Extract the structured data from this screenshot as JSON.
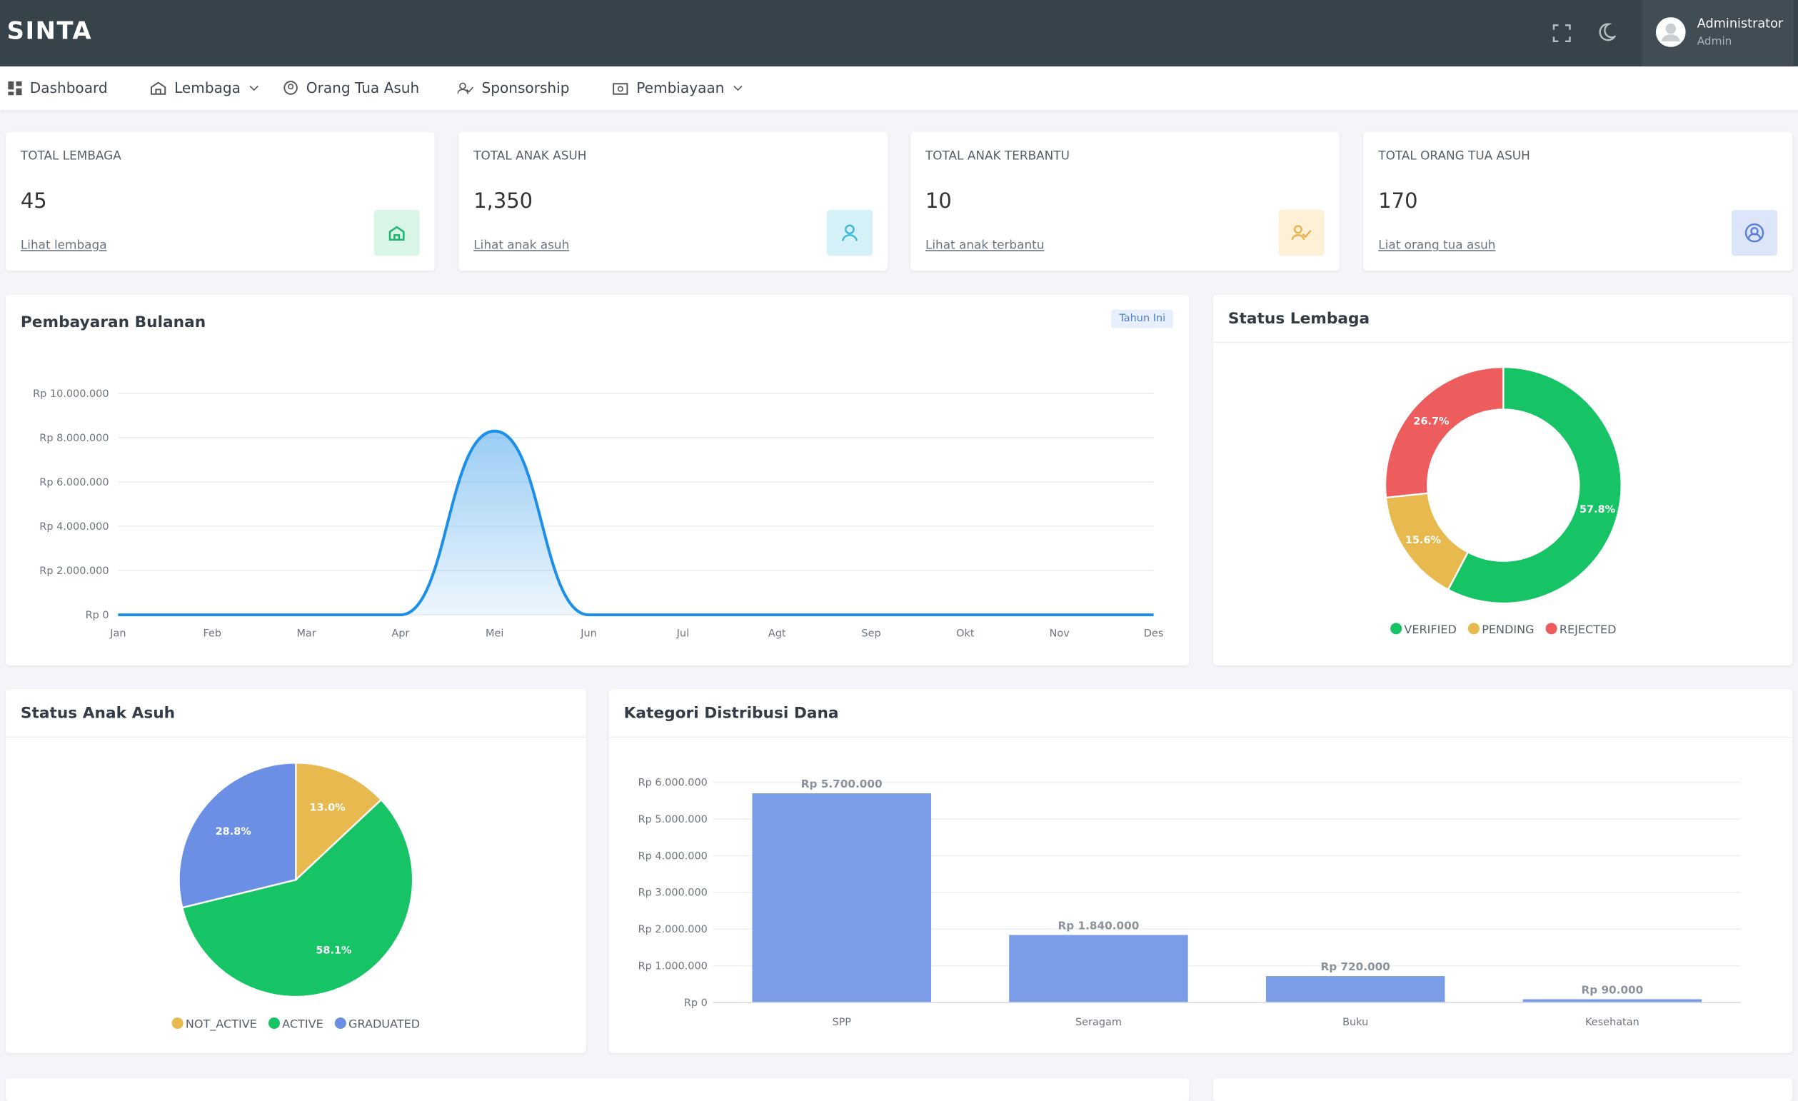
{
  "header": {
    "brand": "SINTA",
    "user_name": "Administrator",
    "user_role": "Admin"
  },
  "nav": [
    "Dashboard",
    "Lembaga",
    "Orang Tua Asuh",
    "Sponsorship",
    "Pembiayaan"
  ],
  "cards": [
    {
      "title": "TOTAL LEMBAGA",
      "value": "45",
      "link": "Lihat lembaga"
    },
    {
      "title": "TOTAL ANAK ASUH",
      "value": "1,350",
      "link": "Lihat anak asuh"
    },
    {
      "title": "TOTAL ANAK TERBANTU",
      "value": "10",
      "link": "Lihat anak terbantu"
    },
    {
      "title": "TOTAL ORANG TUA ASUH",
      "value": "170",
      "link": "Liat orang tua asuh"
    }
  ],
  "chart_data": [
    {
      "type": "line",
      "title": "Pembayaran Bulanan",
      "badge": "Tahun Ini",
      "categories": [
        "Jan",
        "Feb",
        "Mar",
        "Apr",
        "Mei",
        "Jun",
        "Jul",
        "Agt",
        "Sep",
        "Okt",
        "Nov",
        "Des"
      ],
      "values": [
        0,
        0,
        0,
        0,
        8300000,
        0,
        0,
        0,
        0,
        0,
        0,
        0
      ],
      "color": "#1e8fe8",
      "ylim": [
        0,
        10000000
      ],
      "yticks": [
        {
          "value": 0,
          "label": "Rp 0"
        },
        {
          "value": 2000000,
          "label": "Rp 2.000.000"
        },
        {
          "value": 4000000,
          "label": "Rp 4.000.000"
        },
        {
          "value": 6000000,
          "label": "Rp 6.000.000"
        },
        {
          "value": 8000000,
          "label": "Rp 8.000.000"
        },
        {
          "value": 10000000,
          "label": "Rp 10.000.000"
        }
      ],
      "grid": true
    },
    {
      "type": "donut",
      "title": "Status Lembaga",
      "categories": [
        "VERIFIED",
        "PENDING",
        "REJECTED"
      ],
      "values": [
        57.8,
        15.6,
        26.7
      ],
      "value_labels": [
        "57.8%",
        "15.6%",
        "26.7%"
      ],
      "colors": [
        "#16c465",
        "#e8b94e",
        "#ee5d5d"
      ]
    },
    {
      "type": "pie",
      "title": "Status Anak Asuh",
      "categories": [
        "NOT_ACTIVE",
        "ACTIVE",
        "GRADUATED"
      ],
      "values": [
        13.0,
        58.1,
        28.8
      ],
      "value_labels": [
        "13.0%",
        "58.1%",
        "28.8%"
      ],
      "colors": [
        "#e8b94e",
        "#16c465",
        "#6b8fe4"
      ]
    },
    {
      "type": "bar",
      "title": "Kategori Distribusi Dana",
      "categories": [
        "SPP",
        "Seragam",
        "Buku",
        "Kesehatan"
      ],
      "values": [
        5700000,
        1840000,
        720000,
        90000
      ],
      "value_labels": [
        "Rp 5.700.000",
        "Rp 1.840.000",
        "Rp 720.000",
        "Rp 90.000"
      ],
      "color": "#7b9de8",
      "ylim": [
        0,
        6000000
      ],
      "yticks": [
        {
          "value": 0,
          "label": "Rp 0"
        },
        {
          "value": 1000000,
          "label": "Rp 1.000.000"
        },
        {
          "value": 2000000,
          "label": "Rp 2.000.000"
        },
        {
          "value": 3000000,
          "label": "Rp 3.000.000"
        },
        {
          "value": 4000000,
          "label": "Rp 4.000.000"
        },
        {
          "value": 5000000,
          "label": "Rp 5.000.000"
        },
        {
          "value": 6000000,
          "label": "Rp 6.000.000"
        }
      ],
      "grid": true
    }
  ]
}
